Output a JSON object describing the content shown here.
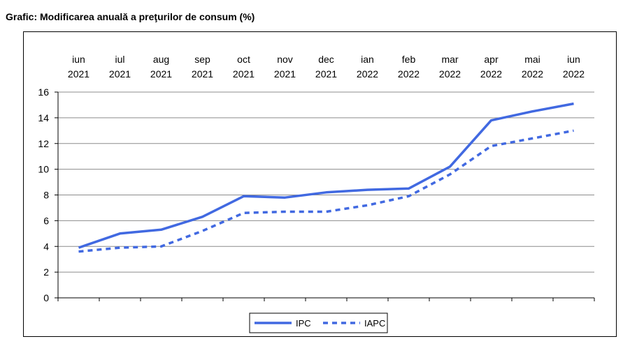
{
  "title": "Grafic: Modificarea anuală a preţurilor de consum (%)",
  "chart_data": {
    "type": "line",
    "categories": [
      [
        "iun",
        "2021"
      ],
      [
        "iul",
        "2021"
      ],
      [
        "aug",
        "2021"
      ],
      [
        "sep",
        "2021"
      ],
      [
        "oct",
        "2021"
      ],
      [
        "nov",
        "2021"
      ],
      [
        "dec",
        "2021"
      ],
      [
        "ian",
        "2022"
      ],
      [
        "feb",
        "2022"
      ],
      [
        "mar",
        "2022"
      ],
      [
        "apr",
        "2022"
      ],
      [
        "mai",
        "2022"
      ],
      [
        "iun",
        "2022"
      ]
    ],
    "series": [
      {
        "name": "IPC",
        "style": "solid",
        "color": "#4169e1",
        "values": [
          3.9,
          5.0,
          5.3,
          6.3,
          7.9,
          7.8,
          8.2,
          8.4,
          8.5,
          10.2,
          13.8,
          14.5,
          15.1
        ]
      },
      {
        "name": "IAPC",
        "style": "dashed",
        "color": "#4169e1",
        "values": [
          3.6,
          3.9,
          4.0,
          5.2,
          6.6,
          6.7,
          6.7,
          7.2,
          7.9,
          9.6,
          11.8,
          12.4,
          13.0
        ]
      }
    ],
    "ylim": [
      0,
      16
    ],
    "yticks": [
      0,
      2,
      4,
      6,
      8,
      10,
      12,
      14,
      16
    ],
    "xlabel": "",
    "ylabel": "",
    "grid": true,
    "legend": "bottom-center"
  }
}
